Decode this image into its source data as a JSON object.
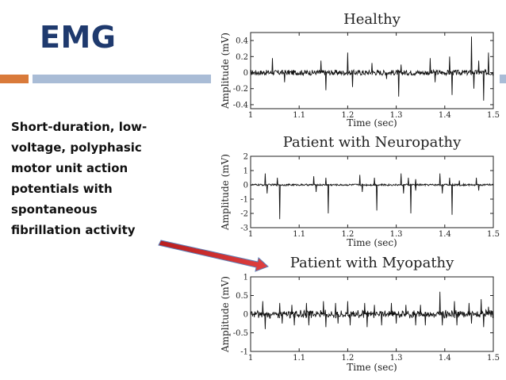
{
  "slide": {
    "title": "EMG",
    "description_lines": [
      "Short-duration, low-",
      "voltage, polyphasic",
      "motor unit action",
      "potentials with",
      "spontaneous",
      "fibrillation activity"
    ],
    "colors": {
      "title": "#1f3a6e",
      "accent_orange": "#d97a3a",
      "accent_blue": "#a9bcd6",
      "arrow": "#d42a2a"
    }
  },
  "chart_data": [
    {
      "type": "line",
      "title": "Healthy",
      "xlabel": "Time (sec)",
      "ylabel": "Amplitude (mV)",
      "xlim": [
        1,
        1.5
      ],
      "ylim": [
        -0.45,
        0.5
      ],
      "x_ticks": [
        "1",
        "1.1",
        "1.2",
        "1.3",
        "1.4",
        "1.5"
      ],
      "y_ticks": [
        "0.4",
        "0.2",
        "0",
        "-0.2",
        "-0.4"
      ],
      "spikes": [
        [
          1.045,
          0.18
        ],
        [
          1.07,
          -0.12
        ],
        [
          1.145,
          0.15
        ],
        [
          1.155,
          -0.22
        ],
        [
          1.2,
          0.25
        ],
        [
          1.21,
          -0.18
        ],
        [
          1.25,
          0.12
        ],
        [
          1.28,
          -0.08
        ],
        [
          1.305,
          -0.3
        ],
        [
          1.31,
          0.1
        ],
        [
          1.37,
          0.18
        ],
        [
          1.38,
          -0.12
        ],
        [
          1.41,
          0.2
        ],
        [
          1.415,
          -0.28
        ],
        [
          1.455,
          0.45
        ],
        [
          1.46,
          -0.2
        ],
        [
          1.47,
          0.15
        ],
        [
          1.48,
          -0.35
        ],
        [
          1.49,
          0.25
        ]
      ]
    },
    {
      "type": "line",
      "title": "Patient with Neuropathy",
      "xlabel": "Time (sec)",
      "ylabel": "Amplitude (mV)",
      "xlim": [
        1,
        1.5
      ],
      "ylim": [
        -3,
        2
      ],
      "x_ticks": [
        "1",
        "1.1",
        "1.2",
        "1.3",
        "1.4",
        "1.5"
      ],
      "y_ticks": [
        "2",
        "1",
        "0",
        "-1",
        "-2",
        "-3"
      ],
      "spikes": [
        [
          1.03,
          0.8
        ],
        [
          1.034,
          -0.6
        ],
        [
          1.055,
          0.5
        ],
        [
          1.06,
          -2.4
        ],
        [
          1.13,
          0.6
        ],
        [
          1.135,
          -0.5
        ],
        [
          1.155,
          0.5
        ],
        [
          1.16,
          -2.0
        ],
        [
          1.225,
          0.7
        ],
        [
          1.23,
          -0.5
        ],
        [
          1.255,
          0.5
        ],
        [
          1.26,
          -1.8
        ],
        [
          1.31,
          0.8
        ],
        [
          1.315,
          -0.6
        ],
        [
          1.325,
          0.5
        ],
        [
          1.33,
          -2.0
        ],
        [
          1.34,
          0.4
        ],
        [
          1.34,
          -0.4
        ],
        [
          1.39,
          0.8
        ],
        [
          1.395,
          -0.6
        ],
        [
          1.41,
          0.5
        ],
        [
          1.415,
          -2.1
        ],
        [
          1.43,
          0.3
        ],
        [
          1.465,
          0.5
        ],
        [
          1.47,
          -0.4
        ]
      ]
    },
    {
      "type": "line",
      "title": "Patient with Myopathy",
      "xlabel": "Time (sec)",
      "ylabel": "Amplitude (mV)",
      "xlim": [
        1,
        1.5
      ],
      "ylim": [
        -1,
        1
      ],
      "x_ticks": [
        "1",
        "1.1",
        "1.2",
        "1.3",
        "1.4",
        "1.5"
      ],
      "y_ticks": [
        "1",
        "0.5",
        "0",
        "-0.5",
        "-1"
      ],
      "spikes": [
        [
          1.025,
          0.35
        ],
        [
          1.03,
          -0.4
        ],
        [
          1.06,
          0.3
        ],
        [
          1.065,
          -0.25
        ],
        [
          1.085,
          0.25
        ],
        [
          1.09,
          -0.3
        ],
        [
          1.115,
          0.3
        ],
        [
          1.12,
          -0.3
        ],
        [
          1.15,
          0.35
        ],
        [
          1.155,
          -0.35
        ],
        [
          1.175,
          0.3
        ],
        [
          1.18,
          -0.25
        ],
        [
          1.2,
          0.35
        ],
        [
          1.205,
          -0.3
        ],
        [
          1.235,
          0.3
        ],
        [
          1.24,
          -0.35
        ],
        [
          1.255,
          0.25
        ],
        [
          1.27,
          -0.3
        ],
        [
          1.29,
          0.3
        ],
        [
          1.3,
          -0.25
        ],
        [
          1.32,
          0.25
        ],
        [
          1.34,
          -0.3
        ],
        [
          1.35,
          0.25
        ],
        [
          1.36,
          -0.3
        ],
        [
          1.39,
          0.6
        ],
        [
          1.395,
          -0.3
        ],
        [
          1.42,
          0.35
        ],
        [
          1.425,
          -0.3
        ],
        [
          1.45,
          0.3
        ],
        [
          1.455,
          -0.25
        ],
        [
          1.475,
          0.4
        ],
        [
          1.48,
          -0.35
        ],
        [
          1.49,
          0.2
        ]
      ]
    }
  ]
}
